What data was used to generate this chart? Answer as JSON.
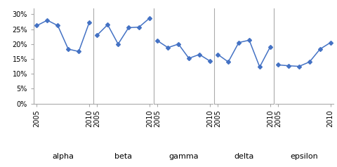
{
  "panels": [
    {
      "name": "alpha",
      "years": [
        2005,
        2006,
        2007,
        2008,
        2009,
        2010
      ],
      "values": [
        0.262,
        0.28,
        0.262,
        0.183,
        0.175,
        0.272
      ]
    },
    {
      "name": "beta",
      "years": [
        2005,
        2006,
        2007,
        2008,
        2009,
        2010
      ],
      "values": [
        0.23,
        0.265,
        0.2,
        0.255,
        0.257,
        0.287
      ]
    },
    {
      "name": "gamma",
      "years": [
        2005,
        2006,
        2007,
        2008,
        2009,
        2010
      ],
      "values": [
        0.211,
        0.188,
        0.2,
        0.152,
        0.165,
        0.143
      ]
    },
    {
      "name": "delta",
      "years": [
        2005,
        2006,
        2007,
        2008,
        2009,
        2010
      ],
      "values": [
        0.165,
        0.14,
        0.205,
        0.213,
        0.123,
        0.19
      ]
    },
    {
      "name": "epsilon",
      "years": [
        2005,
        2006,
        2007,
        2008,
        2009,
        2010
      ],
      "values": [
        0.13,
        0.127,
        0.125,
        0.14,
        0.183,
        0.205
      ]
    }
  ],
  "line_color": "#4472C4",
  "marker": "D",
  "markersize": 3.0,
  "linewidth": 1.1,
  "ylim": [
    0,
    0.32
  ],
  "yticks": [
    0,
    0.05,
    0.1,
    0.15,
    0.2,
    0.25,
    0.3
  ],
  "spine_color": "#AAAAAA",
  "background_color": "#ffffff",
  "tick_fontsize": 7,
  "label_fontsize": 8
}
